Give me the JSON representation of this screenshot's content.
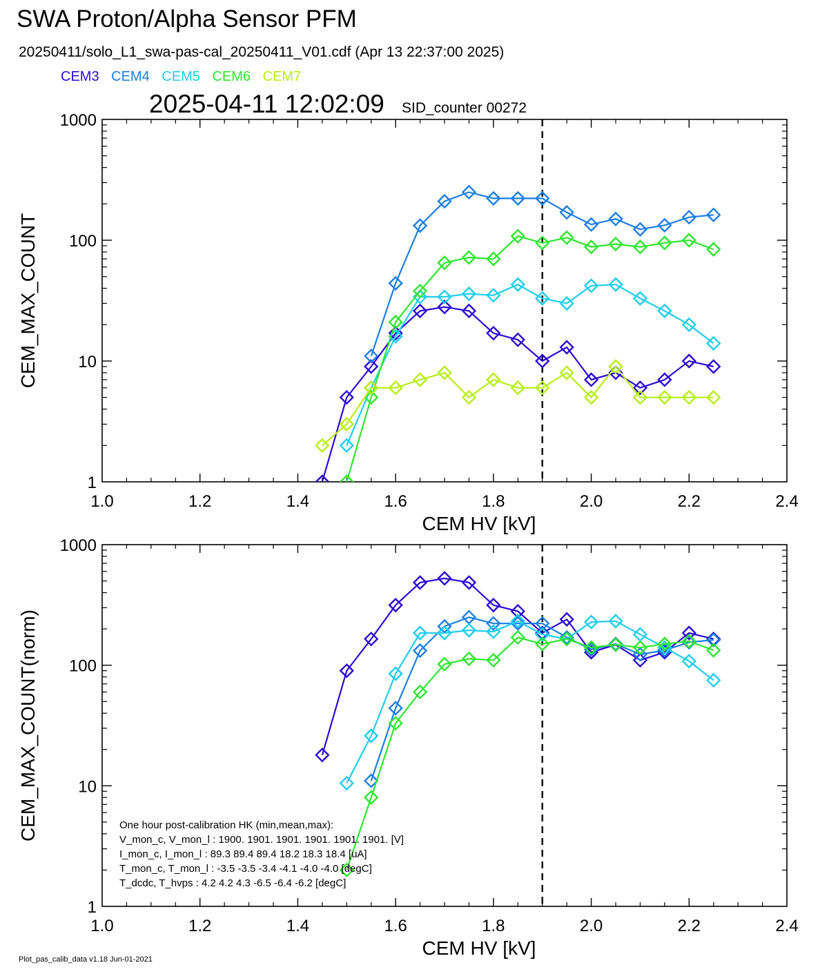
{
  "title": "SWA Proton/Alpha Sensor PFM",
  "file_line": "20250411/solo_L1_swa-pas-cal_20250411_V01.cdf  (Apr 13 22:37:00 2025)",
  "timestamp": "2025-04-11 12:02:09",
  "sid_counter": "SID_counter 00272",
  "footer": "Plot_pas_calib_data v1.18 Jun-01-2021",
  "colors": {
    "CEM3": "#2a0ad6",
    "CEM4": "#1a7ee6",
    "CEM5": "#1ecdee",
    "CEM6": "#2ee62e",
    "CEM7": "#b6ee12"
  },
  "legend": [
    "CEM3",
    "CEM4",
    "CEM5",
    "CEM6",
    "CEM7"
  ],
  "hk_lines": [
    "One hour post-calibration HK (min,mean,max):",
    "V_mon_c, V_mon_l :   1900.  1901.  1901.      1901.  1901.  1901. [V]",
    "I_mon_c,  I_mon_l :    89.3   89.4   89.4        18.2   18.3   18.4  [uA]",
    "T_mon_c, T_mon_l :    -3.5   -3.5   -3.4        -4.1   -4.0   -4.0  [degC]",
    "T_dcdc,    T_hvps :      4.2    4.2    4.3        -6.5   -6.4   -6.2  [degC]"
  ],
  "chart_data": [
    {
      "type": "line",
      "xlabel": "CEM HV [kV]",
      "ylabel": "CEM_MAX_COUNT",
      "xlim": [
        1.0,
        2.4
      ],
      "ylim": [
        1,
        1000
      ],
      "yscale": "log",
      "xticks": [
        "1.0",
        "1.2",
        "1.4",
        "1.6",
        "1.8",
        "2.0",
        "2.2",
        "2.4"
      ],
      "yticks": [
        "1",
        "10",
        "100",
        "1000"
      ],
      "vline_x": 1.9,
      "x": [
        1.45,
        1.5,
        1.55,
        1.6,
        1.65,
        1.7,
        1.75,
        1.8,
        1.85,
        1.9,
        1.95,
        2.0,
        2.05,
        2.1,
        2.15,
        2.2,
        2.25
      ],
      "series": [
        {
          "name": "CEM3",
          "values": [
            1,
            5,
            9,
            17,
            26,
            28,
            26,
            17,
            15,
            10,
            13,
            7,
            8,
            6,
            7,
            10,
            9
          ]
        },
        {
          "name": "CEM4",
          "values": [
            null,
            null,
            11,
            44,
            132,
            210,
            250,
            222,
            222,
            222,
            170,
            135,
            150,
            123,
            133,
            155,
            162
          ]
        },
        {
          "name": "CEM5",
          "values": [
            null,
            2,
            6,
            16,
            34,
            34,
            36,
            35,
            43,
            33,
            30,
            42,
            43,
            33,
            26,
            20,
            14
          ]
        },
        {
          "name": "CEM6",
          "values": [
            null,
            1,
            5,
            21,
            38,
            65,
            72,
            70,
            108,
            95,
            105,
            88,
            93,
            88,
            95,
            100,
            84
          ]
        },
        {
          "name": "CEM7",
          "values": [
            2,
            3,
            6,
            6,
            7,
            8,
            5,
            7,
            6,
            6,
            8,
            5,
            9,
            5,
            5,
            5,
            5
          ]
        }
      ]
    },
    {
      "type": "line",
      "xlabel": "CEM HV [kV]",
      "ylabel": "CEM_MAX_COUNT(norm)",
      "xlim": [
        1.0,
        2.4
      ],
      "ylim": [
        1,
        1000
      ],
      "yscale": "log",
      "xticks": [
        "1.0",
        "1.2",
        "1.4",
        "1.6",
        "1.8",
        "2.0",
        "2.2",
        "2.4"
      ],
      "yticks": [
        "1",
        "10",
        "100",
        "1000"
      ],
      "vline_x": 1.9,
      "x": [
        1.45,
        1.5,
        1.55,
        1.6,
        1.65,
        1.7,
        1.75,
        1.8,
        1.85,
        1.9,
        1.95,
        2.0,
        2.05,
        2.1,
        2.15,
        2.2,
        2.25
      ],
      "series": [
        {
          "name": "CEM3",
          "values": [
            18,
            90,
            165,
            315,
            485,
            525,
            485,
            315,
            280,
            185,
            240,
            128,
            148,
            110,
            128,
            185,
            165
          ]
        },
        {
          "name": "CEM4",
          "values": [
            null,
            null,
            11,
            44,
            132,
            210,
            250,
            222,
            222,
            222,
            170,
            135,
            150,
            123,
            133,
            155,
            162
          ]
        },
        {
          "name": "CEM5",
          "values": [
            null,
            10.5,
            26,
            85,
            185,
            185,
            195,
            190,
            232,
            180,
            165,
            228,
            232,
            180,
            140,
            108,
            75
          ]
        },
        {
          "name": "CEM6",
          "values": [
            null,
            2,
            8,
            33,
            60,
            102,
            113,
            110,
            170,
            150,
            165,
            140,
            148,
            140,
            150,
            158,
            133
          ]
        }
      ]
    }
  ]
}
